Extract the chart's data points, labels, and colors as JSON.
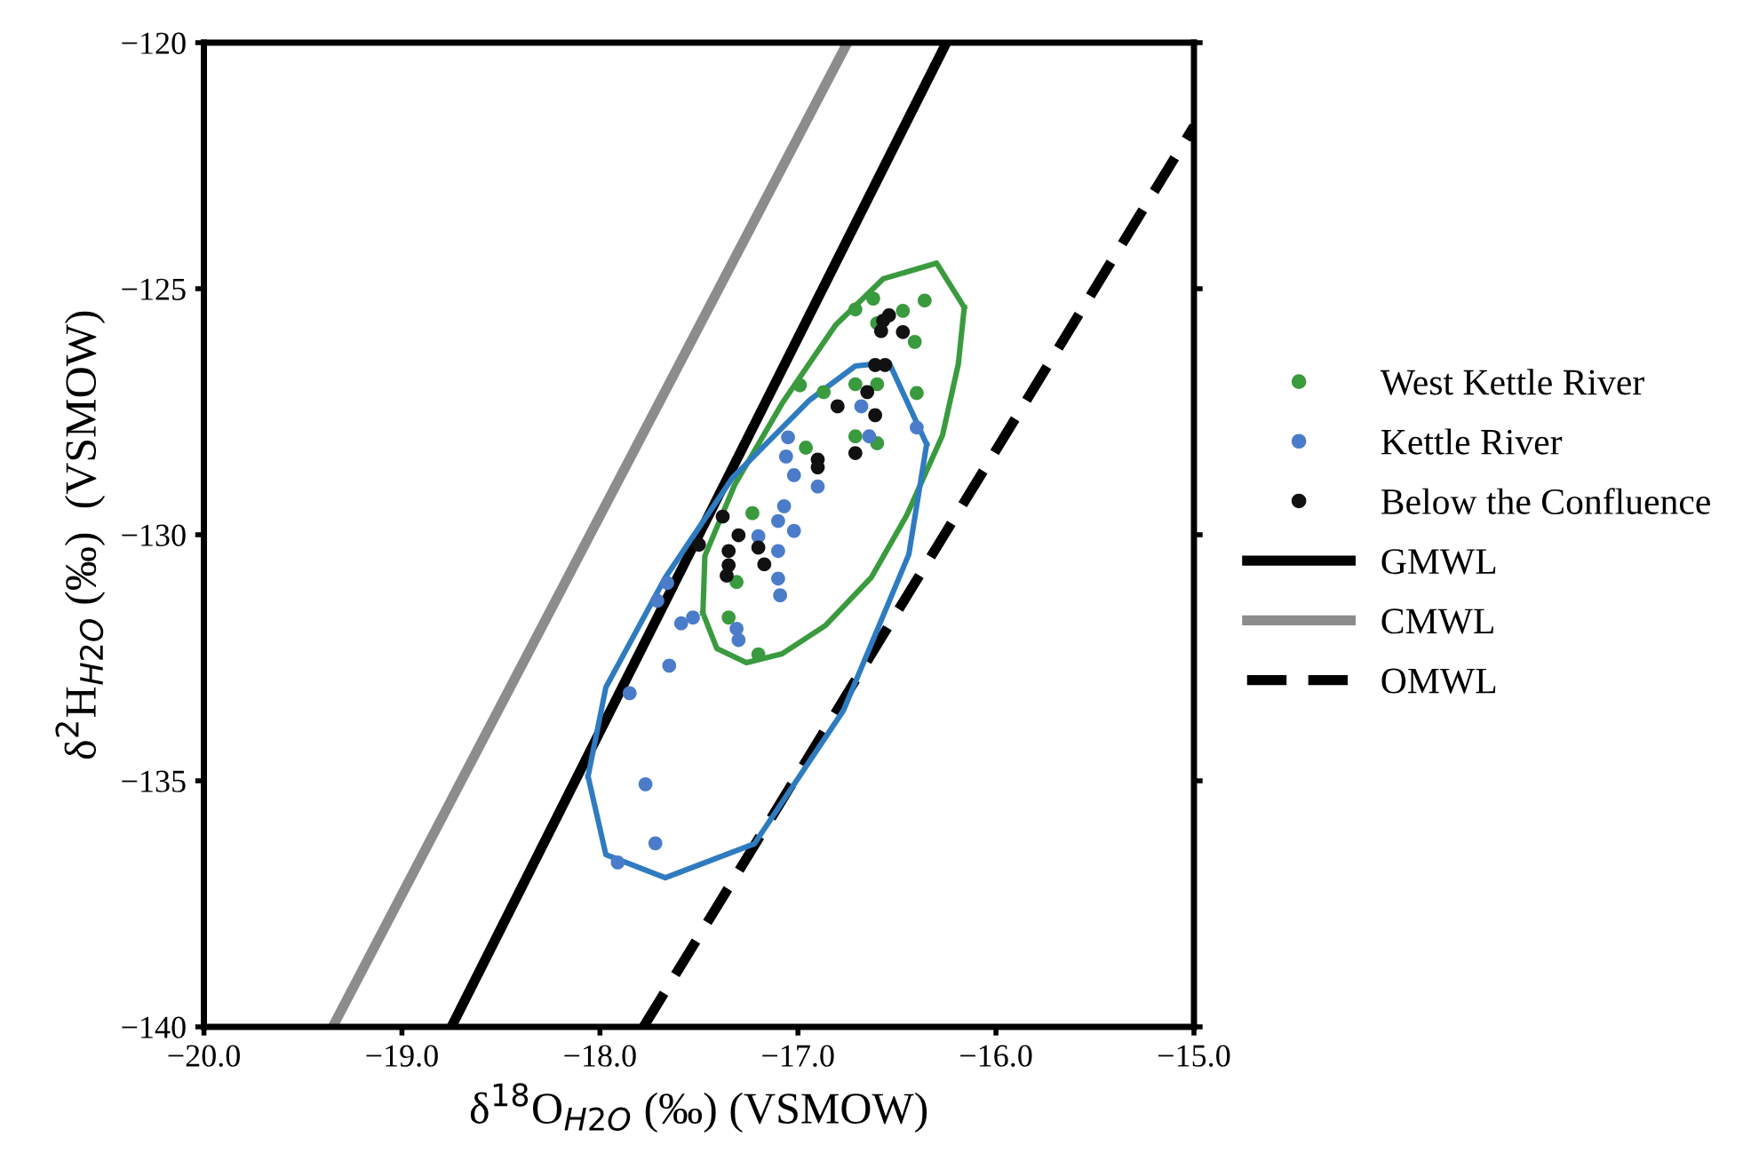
{
  "chart_data": {
    "type": "scatter",
    "xlabel": "δ$^{18}$O$_{H2O}$ (‰) (VSMOW)",
    "ylabel": "δ$^{2}$H$_{H2O}$ (‰)  (VSMOW)",
    "xlim": [
      -20,
      -15
    ],
    "ylim": [
      -140,
      -120
    ],
    "xticks": [
      {
        "value": -20,
        "label": "−20.0"
      },
      {
        "value": -19,
        "label": "−19.0"
      },
      {
        "value": -18,
        "label": "−18.0"
      },
      {
        "value": -17,
        "label": "−17.0"
      },
      {
        "value": -16,
        "label": "−16.0"
      },
      {
        "value": -15,
        "label": "−15.0"
      }
    ],
    "yticks": [
      {
        "value": -140,
        "label": "−140"
      },
      {
        "value": -135,
        "label": "−135"
      },
      {
        "value": -130,
        "label": "−130"
      },
      {
        "value": -125,
        "label": "−125"
      },
      {
        "value": -120,
        "label": "−120"
      }
    ],
    "grid": false,
    "legend": "right",
    "marker": "circle",
    "series": [
      {
        "name": "West Kettle River",
        "color": "#3a9a3e",
        "x": [
          -16.36,
          -16.62,
          -16.71,
          -16.47,
          -16.6,
          -16.41,
          -16.99,
          -16.71,
          -16.6,
          -16.4,
          -16.87,
          -16.96,
          -16.71,
          -16.6,
          -17.23,
          -17.31,
          -17.35,
          -17.2
        ],
        "values": [
          -125.24,
          -125.2,
          -125.42,
          -125.45,
          -125.7,
          -126.08,
          -126.96,
          -126.94,
          -126.94,
          -127.12,
          -127.1,
          -128.23,
          -128.0,
          -128.14,
          -129.56,
          -130.96,
          -131.68,
          -132.43
        ]
      },
      {
        "name": "Kettle River",
        "color": "#4a7cc9",
        "x": [
          -16.4,
          -16.68,
          -16.64,
          -17.05,
          -17.06,
          -17.02,
          -16.9,
          -17.07,
          -17.1,
          -17.02,
          -17.2,
          -17.1,
          -17.1,
          -17.09,
          -17.66,
          -17.71,
          -17.53,
          -17.59,
          -17.31,
          -17.3,
          -17.65,
          -17.85,
          -17.77,
          -17.72,
          -17.91
        ],
        "values": [
          -127.82,
          -127.39,
          -128.0,
          -128.02,
          -128.41,
          -128.79,
          -129.02,
          -129.42,
          -129.72,
          -129.92,
          -130.03,
          -130.33,
          -130.89,
          -131.23,
          -130.98,
          -131.34,
          -131.68,
          -131.8,
          -131.91,
          -132.14,
          -132.66,
          -133.22,
          -135.07,
          -136.27,
          -136.66
        ]
      },
      {
        "name": "Below the Confluence",
        "color": "#111111",
        "x": [
          -16.54,
          -16.47,
          -16.58,
          -16.57,
          -16.61,
          -16.56,
          -16.65,
          -16.8,
          -16.61,
          -16.71,
          -16.9,
          -16.9,
          -17.38,
          -17.3,
          -17.2,
          -17.35,
          -17.35,
          -17.36,
          -17.17,
          -17.5
        ],
        "values": [
          -125.54,
          -125.88,
          -125.86,
          -125.65,
          -126.55,
          -126.55,
          -127.1,
          -127.39,
          -127.57,
          -128.34,
          -128.47,
          -128.63,
          -129.63,
          -130.01,
          -130.26,
          -130.33,
          -130.62,
          -130.83,
          -130.6,
          -130.2
        ]
      },
      {
        "name": "GMWL",
        "type": "line",
        "color": "#000000",
        "line_style": "solid",
        "marker": "none",
        "x": [
          -18.75,
          -16.25
        ],
        "values": [
          -140,
          -120
        ]
      },
      {
        "name": "CMWL",
        "type": "line",
        "color": "#8c8c8c",
        "line_style": "solid",
        "marker": "none",
        "x": [
          -19.35,
          -16.75
        ],
        "values": [
          -140,
          -120
        ]
      },
      {
        "name": "OMWL",
        "type": "line",
        "color": "#000000",
        "line_style": "dashed",
        "marker": "none",
        "x": [
          -17.78,
          -15.0
        ],
        "values": [
          -140,
          -121.7
        ]
      },
      {
        "type": "line",
        "color": "#3a9a3e",
        "line_style": "solid",
        "marker": "none",
        "x": [
          -17.48,
          -17.41,
          -17.26,
          -17.08,
          -16.86,
          -16.63,
          -16.45,
          -16.27,
          -16.19,
          -16.16,
          null,
          -17.48,
          -17.47,
          -17.32,
          -17.08,
          -16.81,
          -16.57,
          -16.3,
          -16.16
        ],
        "values": [
          -131.59,
          -132.31,
          -132.6,
          -132.42,
          -131.84,
          -130.87,
          -129.6,
          -127.98,
          -126.53,
          -125.38,
          null,
          -131.59,
          -130.43,
          -128.99,
          -127.33,
          -125.74,
          -124.8,
          -124.48,
          -125.38
        ]
      },
      {
        "type": "line",
        "color": "#2f7bc0",
        "line_style": "solid",
        "marker": "none",
        "x": [
          -18.06,
          -17.97,
          -17.67,
          -17.22,
          -16.77,
          -16.44,
          -16.35,
          null,
          -18.06,
          -17.97,
          -17.67,
          -17.33,
          -16.94,
          -16.71,
          -16.54,
          -16.35
        ],
        "values": [
          -134.91,
          -136.5,
          -136.97,
          -136.28,
          -133.57,
          -130.4,
          -128.16,
          null,
          -134.91,
          -133.1,
          -130.87,
          -128.84,
          -127.26,
          -126.57,
          -126.5,
          -128.16
        ]
      }
    ]
  }
}
